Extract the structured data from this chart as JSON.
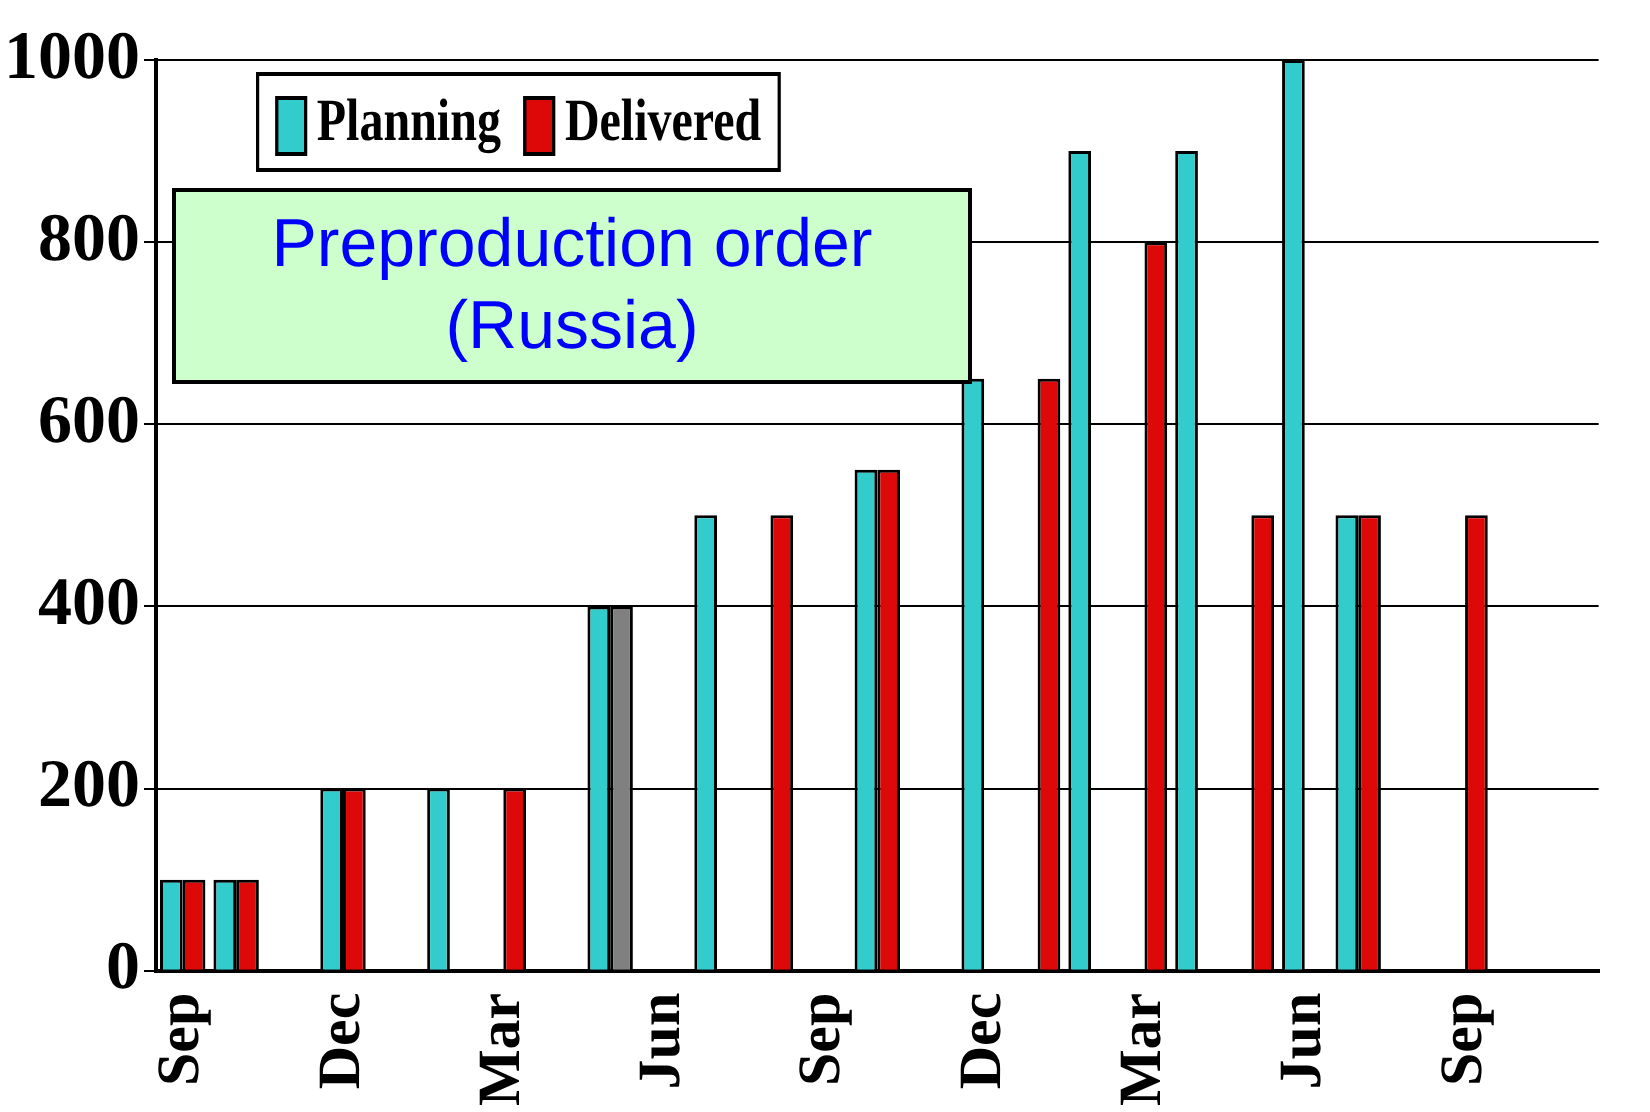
{
  "chart_data": {
    "type": "bar",
    "categories": [
      "Sep",
      null,
      null,
      "Dec",
      null,
      null,
      "Mar",
      null,
      null,
      "Jun",
      null,
      null,
      "Sep",
      null,
      null,
      "Dec",
      null,
      null,
      "Mar",
      null,
      null,
      "Jun",
      null,
      null,
      "Sep",
      null,
      null
    ],
    "series": [
      {
        "name": "Planning",
        "color": "#33cccc",
        "values": [
          100,
          100,
          null,
          200,
          null,
          200,
          null,
          null,
          400,
          null,
          500,
          null,
          null,
          550,
          null,
          650,
          null,
          900,
          null,
          900,
          null,
          1000,
          500,
          null,
          null,
          null,
          null
        ]
      },
      {
        "name": "Delivered",
        "color": "#dd0808",
        "colors": [
          "#dd0808",
          "#dd0808",
          "#dd0808",
          "#dd0808",
          "#dd0808",
          "#dd0808",
          "#dd0808",
          "#dd0808",
          "#808080",
          "#dd0808",
          "#dd0808",
          "#dd0808",
          "#dd0808",
          "#dd0808",
          "#dd0808",
          "#dd0808",
          "#dd0808",
          "#dd0808",
          "#dd0808",
          "#dd0808",
          "#dd0808",
          "#dd0808",
          "#dd0808",
          "#dd0808",
          "#dd0808",
          "#dd0808",
          "#dd0808"
        ],
        "values": [
          100,
          100,
          null,
          200,
          null,
          null,
          200,
          null,
          400,
          null,
          null,
          500,
          null,
          550,
          null,
          null,
          650,
          null,
          800,
          null,
          500,
          null,
          500,
          null,
          500,
          null,
          null
        ]
      }
    ],
    "ylim": [
      0,
      1000
    ],
    "yticks": [
      0,
      200,
      400,
      600,
      800,
      1000
    ],
    "grid": "y",
    "legend": "top left",
    "annotations": [
      "Preproduction order (Russia)"
    ]
  }
}
